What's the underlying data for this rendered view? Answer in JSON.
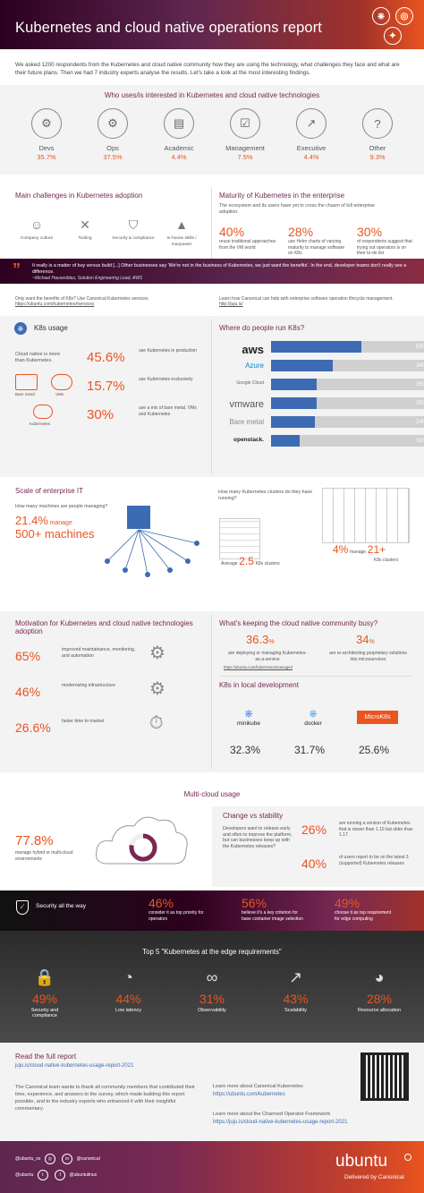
{
  "header": {
    "title": "Kubernetes and cloud native operations report"
  },
  "intro": "We asked 1200 respondents from the Kubernetes and cloud native community how they are using the technology, what challenges they face and what are their future plans. Then we had 7 industry experts analyse the results. Let's take a look at the most interesting findings.",
  "roles": {
    "heading": "Who uses/is interested in Kubernetes and cloud native technologies",
    "items": [
      {
        "label": "Devs",
        "value": "35.7%",
        "icon": "gear-icon"
      },
      {
        "label": "Ops",
        "value": "37.5%",
        "icon": "gear-cog-icon"
      },
      {
        "label": "Academic",
        "value": "4.4%",
        "icon": "book-icon"
      },
      {
        "label": "Management",
        "value": "7.5%",
        "icon": "checklist-icon"
      },
      {
        "label": "Executive",
        "value": "4.4%",
        "icon": "chart-icon"
      },
      {
        "label": "Other",
        "value": "9.3%",
        "icon": "question-icon"
      }
    ]
  },
  "challenges": {
    "heading": "Main challenges in Kubernetes adoption",
    "items": [
      {
        "label": "Company culture",
        "icon": "people-icon"
      },
      {
        "label": "Tooling",
        "icon": "tools-icon"
      },
      {
        "label": "Security & compliance",
        "icon": "shield-icon"
      },
      {
        "label": "In-house skills / manpower",
        "icon": "graduation-icon"
      }
    ]
  },
  "maturity": {
    "heading": "Maturity of Kubernetes in the enterprise",
    "intro": "The ecosystem and its users have yet to cross the chasm of full enterprise adoption.",
    "stats": [
      {
        "value": "40%",
        "text": "reuse traditional approaches from the VM world"
      },
      {
        "value": "28%",
        "text": "use Helm charts of varying maturity to manage software on K8s"
      },
      {
        "value": "30%",
        "text": "of respondents suggest that trying out operators is on their to-do list"
      }
    ]
  },
  "quote": {
    "text": "It really is a matter of buy versus build [...] Other businesses say 'We're not in the business of Kubernetes, we just want the benefits'. In the end, developer teams don't really see a difference.",
    "author": "~Michael Hausenblas, Solution Engineering Lead, AWS"
  },
  "links": {
    "left_text": "Only want the benefits of K8s? Use Canonical Kubernetes services.",
    "left_url": "https://ubuntu.com/kubernetes#services",
    "right_text": "Learn how Canonical can help with enterprise software operation lifecycle management.",
    "right_url": "http://juju.is/"
  },
  "k8s_usage": {
    "heading": "K8s usage",
    "cloud_native_text": "Cloud native is more than Kubernetes.",
    "diagram_labels": [
      "Bare metal",
      "VMs",
      "Kubernetes"
    ],
    "stats": [
      {
        "value": "45.6%",
        "text": "use Kubernetes in production"
      },
      {
        "value": "15.7%",
        "text": "use Kubernetes exclusively"
      },
      {
        "value": "30%",
        "text": "use a mix of bare metal, VMs and Kubernetes"
      }
    ]
  },
  "run_k8s": {
    "heading": "Where do people run K8s?",
    "bars": [
      {
        "label": "aws",
        "value": 50,
        "text": "50%"
      },
      {
        "label": "Azure",
        "value": 34,
        "text": "34%"
      },
      {
        "label": "Google Cloud",
        "value": 25,
        "text": "25%"
      },
      {
        "label": "vmware",
        "value": 25,
        "text": "25%"
      },
      {
        "label": "Bare metal",
        "value": 24,
        "text": "24%"
      },
      {
        "label": "openstack.",
        "value": 16,
        "text": "16%"
      }
    ]
  },
  "scale": {
    "heading": "Scale of enterprise IT",
    "question": "How many machines are people managing?",
    "pct": "21.4%",
    "manage": "manage",
    "machines": "500+ machines",
    "clusters_question": "How many Kubernetes clusters do they have running?",
    "avg_label": "Average",
    "avg_value": "2.5",
    "avg_unit": "K8s clusters",
    "big_pct": "4%",
    "big_manage": "manage",
    "big_value": "21+",
    "big_unit": "K8s clusters"
  },
  "motivation": {
    "heading": "Motivation for Kubernetes and cloud native technologies adoption",
    "stats": [
      {
        "value": "65%",
        "text": "improved maintainance, monitoring, and automation"
      },
      {
        "value": "46%",
        "text": "modernizing infrastructure"
      },
      {
        "value": "26.6%",
        "text": "faster time to market"
      }
    ]
  },
  "busy": {
    "heading": "What's keeping the cloud native community busy?",
    "left_value": "36.3",
    "left_text": "are deploying or managing Kubernetes-as-a-service",
    "left_url": "https://ubuntu.com/kubernetes/managed",
    "right_value": "34",
    "right_text": "are re-architecting proprietary solutions into microservices",
    "pct_sign": "%"
  },
  "local_dev": {
    "heading": "K8s in local development",
    "items": [
      {
        "name": "minikube",
        "value": "32.3%"
      },
      {
        "name": "docker",
        "value": "31.7%"
      },
      {
        "name": "kubernetes",
        "value": "25.6%"
      }
    ],
    "microk8s": "MicroK8s"
  },
  "multicloud": {
    "heading": "Multi-cloud usage",
    "value": "77.8%",
    "text": "manage hybrid or multi-cloud environments",
    "fraction": 0.778
  },
  "stability": {
    "heading": "Change vs stability",
    "text": "Developers want to release early and often to improve the platform, but can businesses keep up with the Kubernetes releases?",
    "stats": [
      {
        "value": "26%",
        "text": "are running a version of Kubernetes that is newer than 1.10 but older than 1.17"
      },
      {
        "value": "40%",
        "text": "of users report to be on the latest 3 (supported) Kubernetes releases"
      }
    ]
  },
  "security": {
    "heading": "Security all the way",
    "stats": [
      {
        "value": "46%",
        "text": "consider it as top priority for operators"
      },
      {
        "value": "56%",
        "text": "believe it's a key criterion for base container image selection"
      },
      {
        "value": "49%",
        "text": "choose it as top requirement for edge computing"
      }
    ]
  },
  "edge": {
    "heading": "Top 5 \"Kubernetes at the edge requirements\"",
    "items": [
      {
        "value": "49%",
        "label": "Security and compliance",
        "icon": "lock-icon"
      },
      {
        "value": "44%",
        "label": "Low latency",
        "icon": "speedometer-icon"
      },
      {
        "value": "31%",
        "label": "Observability",
        "icon": "binoculars-icon"
      },
      {
        "value": "43%",
        "label": "Scalability",
        "icon": "growth-icon"
      },
      {
        "value": "28%",
        "label": "Resource allocation",
        "icon": "pie-icon"
      }
    ]
  },
  "report": {
    "heading": "Read the full report",
    "url": "juju.is/cloud-native-kubernetes-usage-report-2021",
    "thanks": "The Canonical team wants to thank all community members that contributed their time, experience, and answers to the survey, which made building this report possible, and to the industry experts who enhanced it with their insightful commentary.",
    "learn1": "Learn more about Canonical Kubernetes",
    "learn1_url": "https://ubuntu.com/kubernetes",
    "learn2": "Learn more about the Charmed Operator Framework",
    "learn2_url": "https://juju.is/cloud-native-kubernetes-usage-report-2021"
  },
  "footer": {
    "social_left": [
      "@ubuntu_os",
      "@canonical"
    ],
    "social_right": [
      "@ubuntu",
      "@ubuntulinux"
    ],
    "brand": "ubuntu",
    "tagline": "Delivered by Canonical"
  },
  "colors": {
    "accent": "#e95420",
    "purple": "#772953",
    "bar": "#3d6bb3"
  }
}
